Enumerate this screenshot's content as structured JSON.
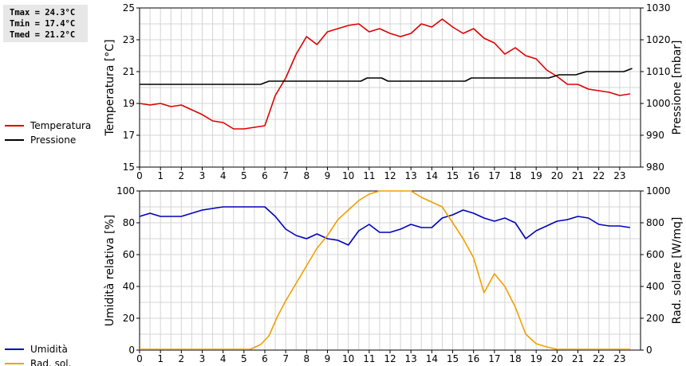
{
  "stats": {
    "tmax": "Tmax = 24.3°C",
    "tmin": "Tmin = 17.4°C",
    "tmed": "Tmed = 21.2°C"
  },
  "chart_data": [
    {
      "type": "line",
      "xlabel": "",
      "xlim": [
        0,
        24
      ],
      "x_ticks": [
        "0",
        "1",
        "2",
        "3",
        "4",
        "5",
        "6",
        "7",
        "8",
        "9",
        "10",
        "11",
        "12",
        "13",
        "14",
        "15",
        "16",
        "17",
        "18",
        "19",
        "20",
        "21",
        "22",
        "23"
      ],
      "grid": true,
      "legend_position": "left",
      "y_left": {
        "label": "Temperatura [°C]",
        "ylim": [
          15,
          25
        ],
        "ticks": [
          "15",
          "17",
          "19",
          "21",
          "23",
          "25"
        ]
      },
      "y_right": {
        "label": "Pressione [mbar]",
        "ylim": [
          980,
          1030
        ],
        "ticks": [
          "980",
          "990",
          "1000",
          "1010",
          "1020",
          "1030"
        ]
      },
      "series": [
        {
          "name": "Temperatura",
          "axis": "left",
          "color": "#dd0000",
          "x": [
            0,
            0.5,
            1,
            1.5,
            2,
            2.5,
            3,
            3.5,
            4,
            4.5,
            5,
            5.5,
            6,
            6.5,
            7,
            7.5,
            8,
            8.5,
            9,
            9.5,
            10,
            10.5,
            11,
            11.5,
            12,
            12.5,
            13,
            13.5,
            14,
            14.5,
            15,
            15.5,
            16,
            16.5,
            17,
            17.5,
            18,
            18.5,
            19,
            19.5,
            20,
            20.5,
            21,
            21.5,
            22,
            22.5,
            23,
            23.5
          ],
          "values": [
            19.0,
            18.9,
            19.0,
            18.8,
            18.9,
            18.6,
            18.3,
            17.9,
            17.8,
            17.4,
            17.4,
            17.5,
            17.6,
            19.5,
            20.6,
            22.1,
            23.2,
            22.7,
            23.5,
            23.7,
            23.9,
            24.0,
            23.5,
            23.7,
            23.4,
            23.2,
            23.4,
            24.0,
            23.8,
            24.3,
            23.8,
            23.4,
            23.7,
            23.1,
            22.8,
            22.1,
            22.5,
            22.0,
            21.8,
            21.1,
            20.7,
            20.2,
            20.2,
            19.9,
            19.8,
            19.7,
            19.5,
            19.6
          ]
        },
        {
          "name": "Pressione",
          "axis": "right",
          "color": "#000000",
          "x": [
            0,
            5.8,
            6.2,
            10.6,
            10.9,
            11.6,
            11.9,
            15.6,
            15.9,
            19.6,
            20.1,
            20.9,
            21.4,
            23.2,
            23.6
          ],
          "values": [
            1006,
            1006,
            1007,
            1007,
            1008,
            1008,
            1007,
            1007,
            1008,
            1008,
            1009,
            1009,
            1010,
            1010,
            1011
          ]
        }
      ]
    },
    {
      "type": "line",
      "xlabel": "",
      "xlim": [
        0,
        24
      ],
      "x_ticks": [
        "0",
        "1",
        "2",
        "3",
        "4",
        "5",
        "6",
        "7",
        "8",
        "9",
        "10",
        "11",
        "12",
        "13",
        "14",
        "15",
        "16",
        "17",
        "18",
        "19",
        "20",
        "21",
        "22",
        "23"
      ],
      "grid": true,
      "legend_position": "left",
      "y_left": {
        "label": "Umidità relativa [%]",
        "ylim": [
          0,
          100
        ],
        "ticks": [
          "0",
          "20",
          "40",
          "60",
          "80",
          "100"
        ]
      },
      "y_right": {
        "label": "Rad. solare [W/mq]",
        "ylim": [
          0,
          1000
        ],
        "ticks": [
          "0",
          "200",
          "400",
          "600",
          "800",
          "1000"
        ]
      },
      "series": [
        {
          "name": "Umidità",
          "axis": "left",
          "color": "#0000bb",
          "x": [
            0,
            0.5,
            1,
            1.5,
            2,
            2.5,
            3,
            3.5,
            4,
            4.5,
            5,
            5.5,
            6,
            6.5,
            7,
            7.5,
            8,
            8.5,
            9,
            9.5,
            10,
            10.5,
            11,
            11.5,
            12,
            12.5,
            13,
            13.5,
            14,
            14.5,
            15,
            15.5,
            16,
            16.5,
            17,
            17.5,
            18,
            18.5,
            19,
            19.5,
            20,
            20.5,
            21,
            21.5,
            22,
            22.5,
            23,
            23.5
          ],
          "values": [
            84,
            86,
            84,
            84,
            84,
            86,
            88,
            89,
            90,
            90,
            90,
            90,
            90,
            84,
            76,
            72,
            70,
            73,
            70,
            69,
            66,
            75,
            79,
            74,
            74,
            76,
            79,
            77,
            77,
            83,
            85,
            88,
            86,
            83,
            81,
            83,
            80,
            70,
            75,
            78,
            81,
            82,
            84,
            83,
            79,
            78,
            78,
            77
          ]
        },
        {
          "name": "Rad. sol.",
          "axis": "right",
          "color": "#f0a000",
          "x": [
            0,
            5.3,
            5.8,
            6.2,
            6.6,
            7,
            7.5,
            8,
            8.5,
            9,
            9.5,
            10,
            10.5,
            11,
            11.5,
            12,
            12.5,
            13,
            13.5,
            14,
            14.5,
            15,
            15.5,
            16,
            16.5,
            17,
            17.5,
            18,
            18.5,
            19,
            19.5,
            20,
            20.5,
            21,
            22,
            23,
            23.5
          ],
          "values": [
            5,
            5,
            35,
            90,
            210,
            310,
            420,
            530,
            640,
            720,
            820,
            880,
            940,
            980,
            1000,
            1000,
            1000,
            1000,
            960,
            930,
            900,
            800,
            700,
            580,
            360,
            480,
            400,
            270,
            100,
            40,
            20,
            5,
            5,
            5,
            5,
            5,
            5
          ]
        }
      ]
    }
  ]
}
